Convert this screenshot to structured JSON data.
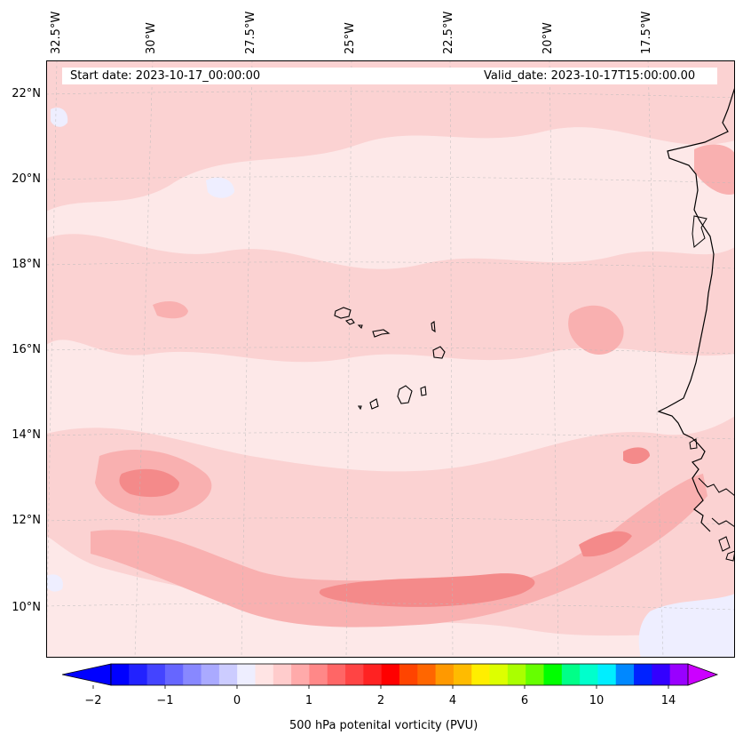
{
  "map": {
    "lon_labels": [
      "32.5°W",
      "30°W",
      "27.5°W",
      "25°W",
      "22.5°W",
      "20°W",
      "17.5°W"
    ],
    "lat_labels": [
      "22°N",
      "20°N",
      "18°N",
      "16°N",
      "14°N",
      "12°N",
      "10°N"
    ],
    "start_date": "Start date: 2023-10-17_00:00:00",
    "valid_date": "Valid_date: 2023-10-17T15:00:00.00",
    "background_color": "#fde8e8",
    "shade_colors": [
      "#fbd2d2",
      "#f9b0b0",
      "#f48a8a"
    ],
    "coastline_color": "#000000"
  },
  "colorbar": {
    "tick_labels": [
      "−2",
      "−1",
      "0",
      "1",
      "2",
      "4",
      "6",
      "10",
      "14"
    ],
    "title": "500 hPa potenital vorticity (PVU)",
    "colors": [
      "#0000ff",
      "#2222ff",
      "#4444ff",
      "#6666ff",
      "#8888ff",
      "#aaaaff",
      "#ccccff",
      "#eeeeff",
      "#ffe4e4",
      "#ffcccc",
      "#ffaaaa",
      "#ff8888",
      "#ff6666",
      "#ff4444",
      "#ff2222",
      "#ff0000",
      "#ff4400",
      "#ff6600",
      "#ff9900",
      "#ffbb00",
      "#ffee00",
      "#ddff00",
      "#aaff00",
      "#66ff00",
      "#00ff00",
      "#00ff88",
      "#00ffcc",
      "#00eeff",
      "#0088ff",
      "#0022ff",
      "#3300ff",
      "#9900ff"
    ],
    "extend_low_color": "#0000ff",
    "extend_high_color": "#cc00ff"
  }
}
